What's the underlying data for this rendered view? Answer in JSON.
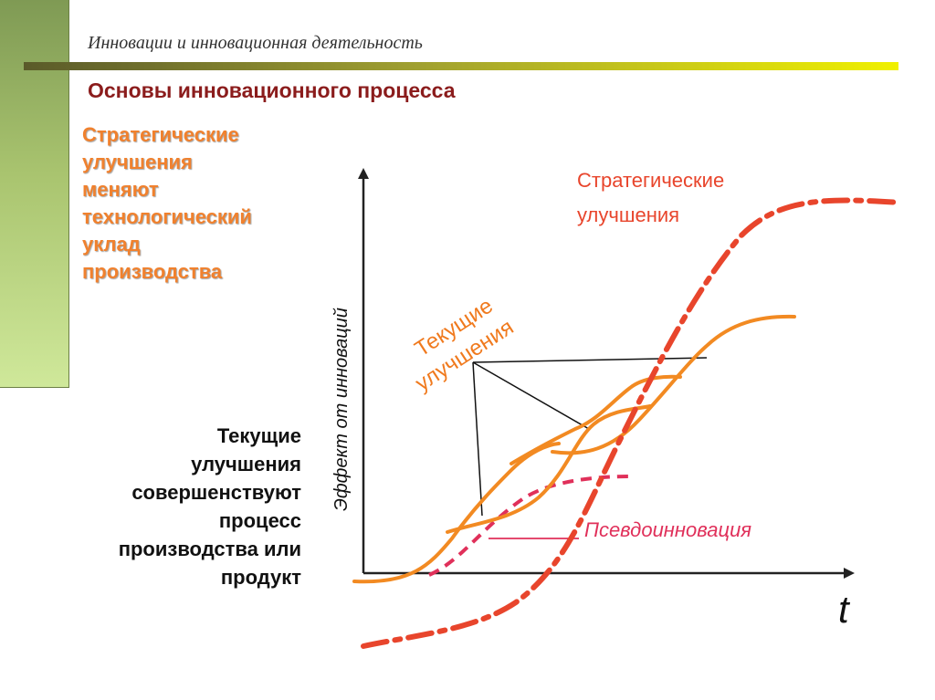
{
  "header": {
    "title": "Инновации и инновационная деятельность"
  },
  "slide": {
    "title": "Основы инновационного процесса",
    "strategic_note": "Стратегические\nулучшения\nменяют\nтехнологический\nуклад\nпроизводства",
    "current_note": "Текущие\nулучшения\nсовершенствуют\nпроцесс\nпроизводства или\nпродукт"
  },
  "diagram": {
    "y_axis_label": "Эффект от инноваций",
    "x_axis_label": "t",
    "strategic_label_line1": "Стратегические",
    "strategic_label_line2": "улучшения",
    "current_label_line1": "Текущие",
    "current_label_line2": "улучшения",
    "pseudo_label": "Псевдоинновация",
    "colors": {
      "strategic": "#e8452c",
      "current": "#f28a22",
      "pseudo": "#e0305a",
      "axis": "#222222",
      "pointer": "#111111",
      "label_orange": "#f07a1e"
    }
  }
}
